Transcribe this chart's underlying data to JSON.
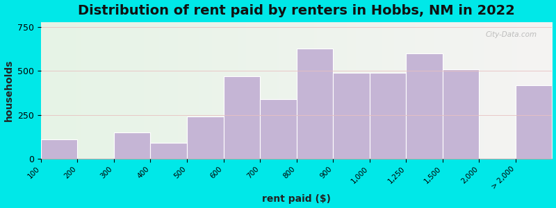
{
  "title": "Distribution of rent paid by renters in Hobbs, NM in 2022",
  "xlabel": "rent paid ($)",
  "ylabel": "households",
  "bar_labels": [
    "100",
    "200",
    "300",
    "400",
    "500",
    "600",
    "700",
    "800",
    "900",
    "1,000",
    "1,250",
    "1,500",
    "2,000",
    "> 2,000"
  ],
  "values": [
    110,
    0,
    150,
    90,
    240,
    470,
    340,
    630,
    490,
    490,
    600,
    510,
    0,
    420
  ],
  "bar_color": "#c5b5d5",
  "bar_edge_color": "#ffffff",
  "background_outer": "#00e8e8",
  "ylim": [
    0,
    780
  ],
  "yticks": [
    0,
    250,
    500,
    750
  ],
  "title_fontsize": 14,
  "axis_label_fontsize": 10,
  "watermark": "City-Data.com"
}
